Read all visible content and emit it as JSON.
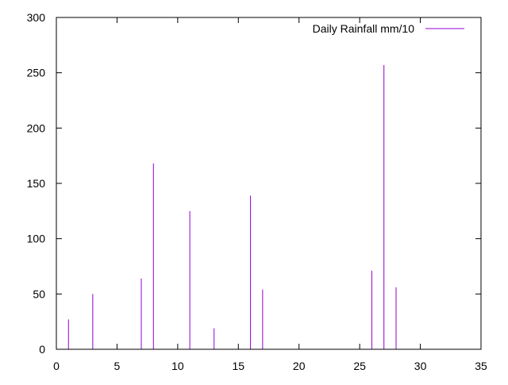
{
  "chart_data": {
    "type": "bar",
    "style": "impulses",
    "title": "",
    "xlabel": "",
    "ylabel": "",
    "xlim": [
      0,
      35
    ],
    "ylim": [
      0,
      300
    ],
    "xticks": [
      0,
      5,
      10,
      15,
      20,
      25,
      30,
      35
    ],
    "yticks": [
      0,
      50,
      100,
      150,
      200,
      250,
      300
    ],
    "grid": false,
    "legend_position": "top-right",
    "series": [
      {
        "name": "Daily Rainfall mm/10",
        "color": "#9400d3",
        "x": [
          1,
          3,
          7,
          8,
          11,
          13,
          16,
          17,
          26,
          27,
          28
        ],
        "values": [
          27,
          50,
          64,
          168,
          125,
          19,
          139,
          54,
          71,
          257,
          56
        ]
      }
    ]
  }
}
